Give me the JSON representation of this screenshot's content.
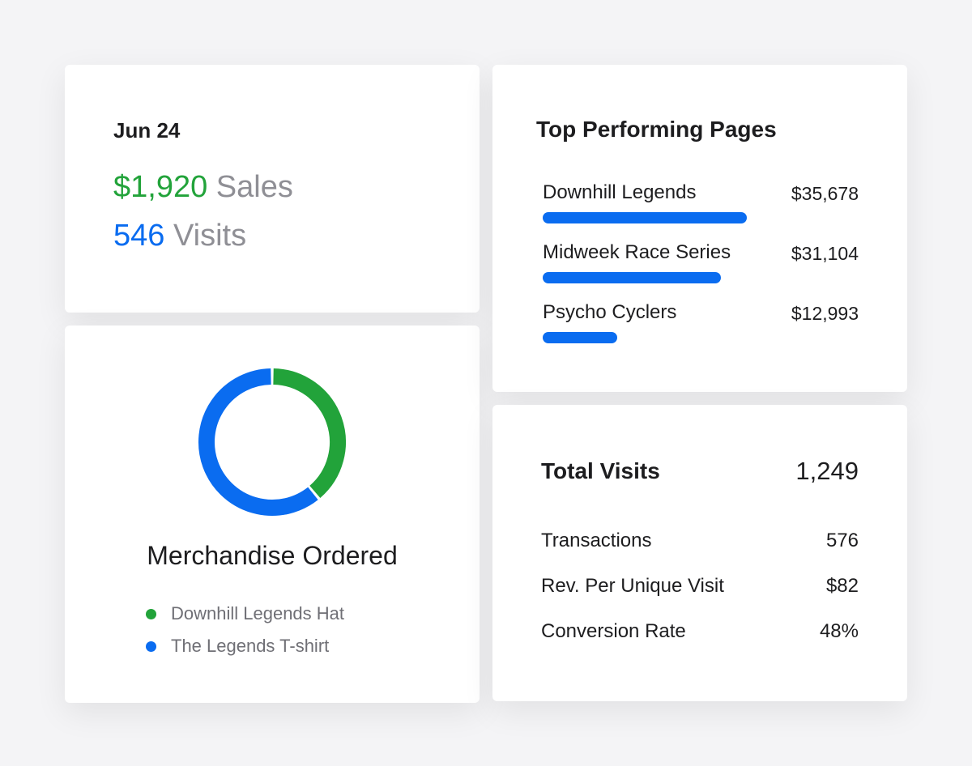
{
  "summary": {
    "date": "Jun 24",
    "sales_value": "$1,920",
    "sales_label": "Sales",
    "visits_value": "546",
    "visits_label": "Visits"
  },
  "merchandise": {
    "title": "Merchandise Ordered",
    "items": [
      {
        "label": "Downhill Legends Hat",
        "share": 0.39,
        "color": "#22a33a"
      },
      {
        "label": "The Legends T-shirt",
        "share": 0.61,
        "color": "#0a6cf0"
      }
    ]
  },
  "top_pages": {
    "title": "Top Performing Pages",
    "bar_color": "#0a6cf0",
    "pages": [
      {
        "name": "Downhill Legends",
        "value": "$35,678",
        "amount": 35678
      },
      {
        "name": "Midweek Race Series",
        "value": "$31,104",
        "amount": 31104
      },
      {
        "name": "Psycho Cyclers",
        "value": "$12,993",
        "amount": 12993
      }
    ]
  },
  "totals": {
    "label": "Total Visits",
    "value": "1,249",
    "metrics": [
      {
        "label": "Transactions",
        "value": "576"
      },
      {
        "label": "Rev. Per Unique Visit",
        "value": "$82"
      },
      {
        "label": "Conversion Rate",
        "value": "48%"
      }
    ]
  },
  "colors": {
    "background": "#f4f4f6",
    "card": "#ffffff",
    "green": "#22a33a",
    "blue": "#0a6cf0",
    "muted": "#8f8f95"
  }
}
